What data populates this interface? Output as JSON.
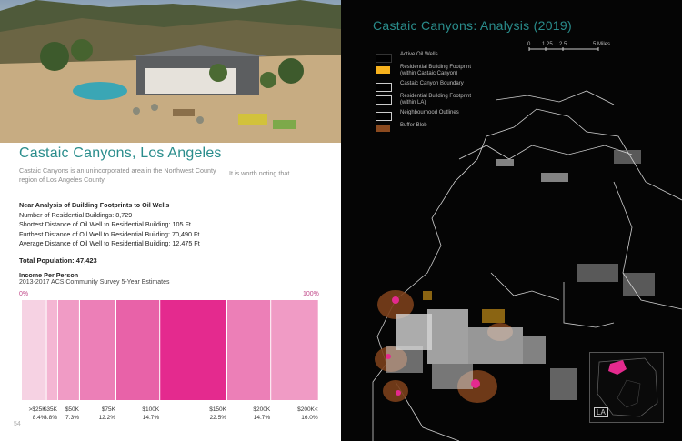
{
  "page": {
    "title": "Castaic Canyons, Los Angeles",
    "description": "Castaic Canyons is an unincorporated area in the Northwest County region of Los Angeles County.",
    "description_extra": "It is worth noting that",
    "analysis_heading": "Near Analysis of Building Footprints to Oil Wells",
    "stats": [
      "Number of Residential Buildings: 8,729",
      "Shortest Distance of Oil Well to Residential Building: 105 Ft",
      "Furthest Distance of Oil Well to Residential Building: 70,490 Ft",
      "Average Distance of Oil Well to Residential Building: 12,475 Ft"
    ],
    "total_population": "Total Population: 47,423",
    "income_heading": "Income Per Person",
    "income_source": "2013-2017 ACS Community Survey 5-Year Estimates",
    "axis_min": "0%",
    "axis_max": "100%",
    "page_number": "54"
  },
  "chart_data": {
    "type": "bar",
    "orientation": "stacked-horizontal",
    "categories": [
      ">$25K",
      "$35K",
      "$50K",
      "$75K",
      "$100K",
      "$150K",
      "$200K",
      "$200K<"
    ],
    "values": [
      8.4,
      3.8,
      7.3,
      12.2,
      14.7,
      22.5,
      14.7,
      16.0
    ],
    "value_labels": [
      "8.4%",
      "3.8%",
      "7.3%",
      "12.2%",
      "14.7%",
      "22.5%",
      "14.7%",
      "16.0%"
    ],
    "colors": [
      "#f6d2e3",
      "#f4b6d3",
      "#f09bc5",
      "#ec7fb7",
      "#e862a8",
      "#e42a8e",
      "#ec7fb7",
      "#f09bc5"
    ],
    "xlim": [
      0,
      100
    ]
  },
  "map": {
    "title": "Castaic Canyons: Analysis (2019)",
    "scale_labels": [
      "0",
      "1.25",
      "2.5",
      "5 Miles"
    ],
    "legend": [
      {
        "label": "Active Oil Wells",
        "color": "#000000"
      },
      {
        "label": "Residential Building Footprint (within Castaic Canyon)",
        "color": "#f7b21d"
      },
      {
        "label": "Castaic Canyon Boundary",
        "color": "#000000"
      },
      {
        "label": "Residential Building Footprint (within LA)",
        "color": "#000000"
      },
      {
        "label": "Neighbourhood Outlines",
        "color": "#000000"
      },
      {
        "label": "Buffer Blob",
        "color": "#8b4a1f"
      }
    ],
    "inset_label": "LA"
  }
}
